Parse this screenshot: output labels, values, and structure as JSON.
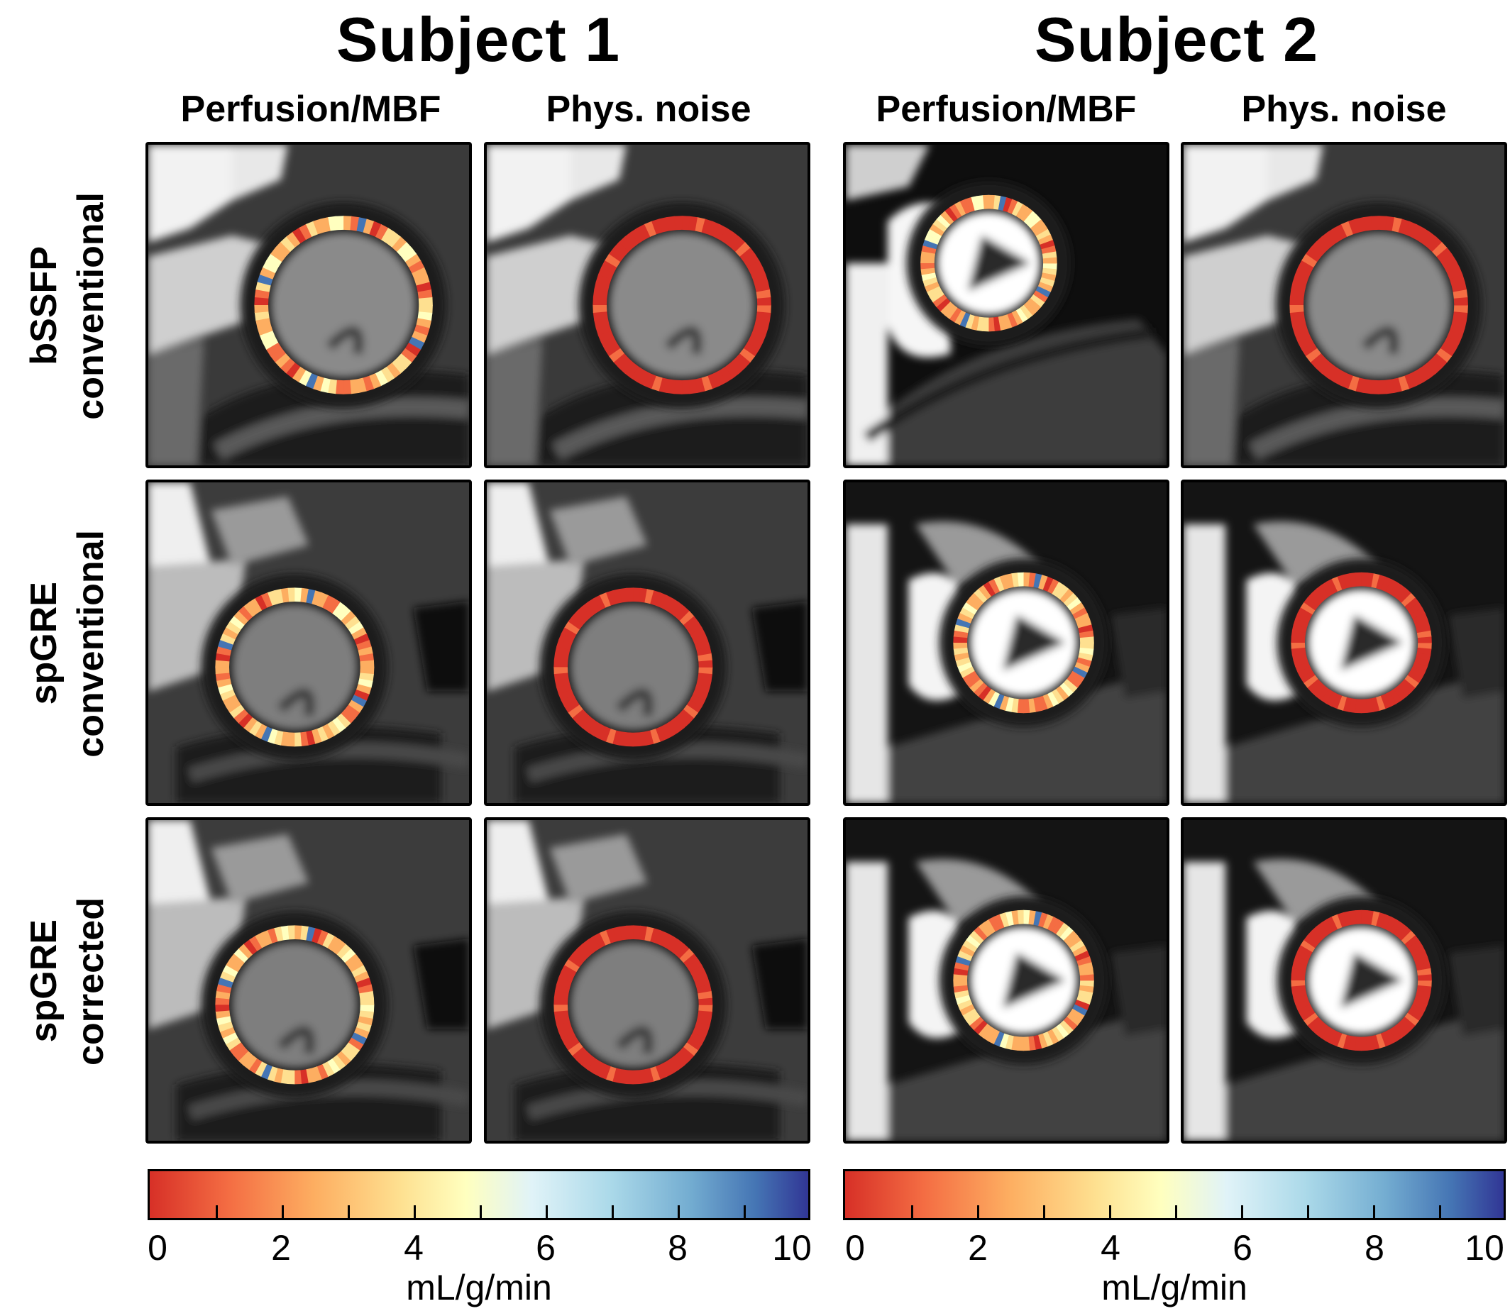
{
  "subjects": [
    {
      "title": "Subject 1",
      "columns": [
        "Perfusion/MBF",
        "Phys. noise"
      ]
    },
    {
      "title": "Subject 2",
      "columns": [
        "Perfusion/MBF",
        "Phys. noise"
      ]
    }
  ],
  "rows": [
    {
      "line1": "bSSFP",
      "line2": "conventional"
    },
    {
      "line1": "spGRE",
      "line2": "conventional"
    },
    {
      "line1": "spGRE",
      "line2": "corrected"
    }
  ],
  "colorbar": {
    "ticks": [
      "0",
      "2",
      "4",
      "6",
      "8",
      "10"
    ],
    "range": [
      0,
      10
    ],
    "unit": "mL/g/min",
    "colormap": [
      "#d73027",
      "#f46d43",
      "#fdae61",
      "#fee090",
      "#ffffbf",
      "#e0f3f8",
      "#abd9e9",
      "#74add1",
      "#4575b4",
      "#313695"
    ]
  }
}
